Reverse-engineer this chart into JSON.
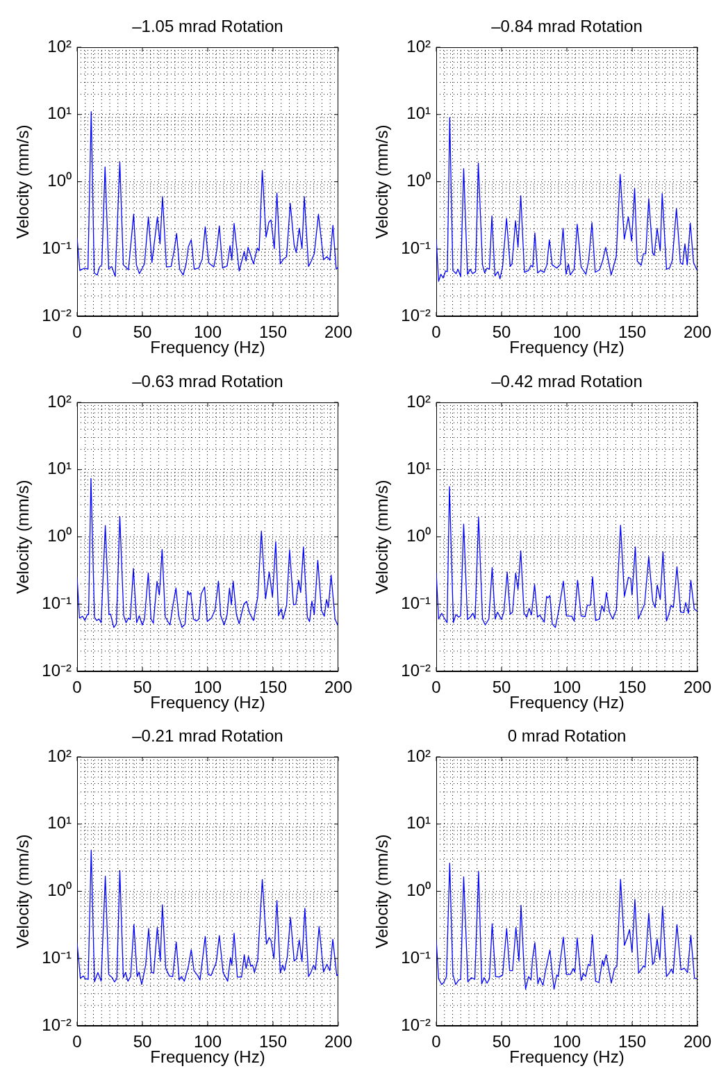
{
  "chart_data": [
    {
      "type": "line",
      "title": "–1.05 mrad Rotation",
      "xlabel": "Frequency (Hz)",
      "ylabel": "Velocity (mm/s)",
      "log": "y",
      "grid": true,
      "xlim": [
        0,
        200
      ],
      "xticks": [
        0,
        50,
        100,
        150,
        200
      ],
      "ylim": [
        0.01,
        100
      ],
      "yticks": [
        {
          "value": 0.01,
          "label": "10⁻²"
        },
        {
          "value": 0.1,
          "label": "10⁻¹"
        },
        {
          "value": 1,
          "label": "10⁰"
        },
        {
          "value": 10,
          "label": "10¹"
        },
        {
          "value": 100,
          "label": "10²"
        }
      ],
      "x": [
        0,
        2.1,
        5.7,
        8.3,
        10.8,
        13.1,
        15.4,
        17.2,
        18.9,
        21.4,
        24.2,
        26.5,
        29.2,
        32.7,
        35.4,
        39.3,
        43.3,
        45.4,
        47.7,
        51.6,
        54.6,
        57.3,
        61.5,
        63.5,
        65.4,
        68.4,
        72,
        74.3,
        76.2,
        78.5,
        81.2,
        83.5,
        85.2,
        87.4,
        89.7,
        93.2,
        95.8,
        98.1,
        100.8,
        104.7,
        106.8,
        108.9,
        111.4,
        114.9,
        117.1,
        118.5,
        120.2,
        124.1,
        128,
        129.4,
        130.9,
        135.1,
        137.9,
        139.4,
        141.8,
        144.7,
        146.8,
        148.5,
        151,
        153,
        155.6,
        158.1,
        160.4,
        163.2,
        166.2,
        167.8,
        170.1,
        172.2,
        174,
        177.2,
        179.3,
        181.6,
        184.8,
        188.7,
        191.3,
        193.5,
        195.9,
        198.4,
        200
      ],
      "series": [
        {
          "color": "#0000ff",
          "values": [
            0.145,
            0.048,
            0.052,
            0.05,
            11,
            0.044,
            0.041,
            0.054,
            0.058,
            1.66,
            0.05,
            0.055,
            0.039,
            1.96,
            0.058,
            0.049,
            0.33,
            0.058,
            0.043,
            0.06,
            0.3,
            0.063,
            0.3,
            0.119,
            0.6,
            0.054,
            0.055,
            0.095,
            0.17,
            0.05,
            0.041,
            0.06,
            0.108,
            0.137,
            0.05,
            0.052,
            0.071,
            0.213,
            0.062,
            0.054,
            0.092,
            0.22,
            0.052,
            0.056,
            0.112,
            0.068,
            0.24,
            0.047,
            0.092,
            0.066,
            0.106,
            0.06,
            0.103,
            0.094,
            1.48,
            0.15,
            0.25,
            0.27,
            0.101,
            0.68,
            0.06,
            0.071,
            0.077,
            0.48,
            0.114,
            0.088,
            0.204,
            0.101,
            0.6,
            0.055,
            0.066,
            0.085,
            0.33,
            0.069,
            0.077,
            0.068,
            0.225,
            0.05,
            0.054
          ]
        }
      ]
    },
    {
      "type": "line",
      "title": "–0.84 mrad Rotation",
      "xlabel": "Frequency (Hz)",
      "ylabel": "Velocity (mm/s)",
      "log": "y",
      "grid": true,
      "xlim": [
        0,
        200
      ],
      "xticks": [
        0,
        50,
        100,
        150,
        200
      ],
      "ylim": [
        0.01,
        100
      ],
      "yticks": [
        {
          "value": 0.01,
          "label": "10⁻²"
        },
        {
          "value": 0.1,
          "label": "10⁻¹"
        },
        {
          "value": 1,
          "label": "10⁰"
        },
        {
          "value": 10,
          "label": "10¹"
        },
        {
          "value": 100,
          "label": "10²"
        }
      ],
      "x": [
        0,
        1.8,
        3.5,
        5.3,
        7.1,
        8.5,
        10.3,
        12.7,
        15.2,
        16.6,
        18.7,
        21,
        23.9,
        26,
        27.8,
        30.1,
        32.2,
        35.4,
        37.1,
        38.9,
        40.7,
        42.6,
        44.9,
        47.2,
        48.8,
        50.8,
        53.8,
        56.6,
        58,
        60.7,
        62.6,
        64.7,
        67.5,
        70.7,
        72.5,
        73.9,
        75.5,
        77.6,
        79.9,
        82.6,
        84.7,
        86.6,
        88.8,
        92.3,
        95,
        97.1,
        99.4,
        101.2,
        102.6,
        105.6,
        107.9,
        110.9,
        114.6,
        116.7,
        119.2,
        121.7,
        125,
        127.3,
        129.8,
        133.9,
        137.8,
        140.8,
        144,
        147.1,
        149.6,
        151.9,
        153.9,
        156.9,
        158.6,
        160.4,
        162.7,
        165.7,
        166.9,
        169.1,
        171.5,
        173,
        176.3,
        178.6,
        180.7,
        183.9,
        186.9,
        188.7,
        190.4,
        192.2,
        194.5,
        197,
        199.5
      ],
      "series": [
        {
          "color": "#0000ff",
          "values": [
            0.14,
            0.033,
            0.042,
            0.037,
            0.047,
            0.046,
            9,
            0.048,
            0.043,
            0.05,
            0.039,
            1.57,
            0.042,
            0.05,
            0.043,
            0.046,
            1.89,
            0.058,
            0.044,
            0.052,
            0.05,
            0.31,
            0.04,
            0.046,
            0.036,
            0.055,
            0.285,
            0.055,
            0.06,
            0.263,
            0.106,
            0.62,
            0.045,
            0.048,
            0.057,
            0.054,
            0.173,
            0.044,
            0.048,
            0.045,
            0.058,
            0.137,
            0.058,
            0.052,
            0.059,
            0.204,
            0.042,
            0.06,
            0.041,
            0.05,
            0.234,
            0.054,
            0.042,
            0.068,
            0.247,
            0.045,
            0.049,
            0.066,
            0.106,
            0.041,
            0.077,
            1.29,
            0.14,
            0.3,
            0.131,
            0.8,
            0.066,
            0.057,
            0.085,
            0.085,
            0.56,
            0.087,
            0.08,
            0.204,
            0.094,
            0.67,
            0.05,
            0.052,
            0.067,
            0.4,
            0.063,
            0.059,
            0.119,
            0.058,
            0.243,
            0.063,
            0.049
          ]
        }
      ]
    },
    {
      "type": "line",
      "title": "–0.63 mrad Rotation",
      "xlabel": "Frequency (Hz)",
      "ylabel": "Velocity (mm/s)",
      "log": "y",
      "grid": true,
      "xlim": [
        0,
        200
      ],
      "xticks": [
        0,
        50,
        100,
        150,
        200
      ],
      "ylim": [
        0.01,
        100
      ],
      "yticks": [
        {
          "value": 0.01,
          "label": "10⁻²"
        },
        {
          "value": 0.1,
          "label": "10⁻¹"
        },
        {
          "value": 1,
          "label": "10⁰"
        },
        {
          "value": 10,
          "label": "10¹"
        },
        {
          "value": 100,
          "label": "10²"
        }
      ],
      "x": [
        0,
        1.8,
        4.2,
        6,
        7.8,
        8.8,
        10.6,
        13.3,
        15,
        16.8,
        18.4,
        21.6,
        24.4,
        25.6,
        28.1,
        30.1,
        32.7,
        35.7,
        37.5,
        39.3,
        40.7,
        43.1,
        45.6,
        47.6,
        49.9,
        51.6,
        54.5,
        56.6,
        58.4,
        61.2,
        63,
        65.1,
        67.5,
        71.1,
        73.7,
        75.7,
        77.8,
        80.3,
        82.6,
        84.7,
        85.8,
        87,
        89.1,
        91.4,
        93.2,
        95,
        97.6,
        99.7,
        102.9,
        105.6,
        108.2,
        110,
        112.6,
        114.9,
        116.7,
        118.1,
        119.5,
        122,
        124.1,
        127.7,
        129.8,
        132.1,
        135.1,
        138.3,
        141.1,
        144.3,
        147.1,
        149.6,
        152.1,
        154.2,
        156.3,
        157.7,
        160.4,
        162.7,
        165.7,
        167.5,
        169.6,
        171.2,
        173.3,
        176.3,
        178,
        179.8,
        181.6,
        184.3,
        187.1,
        189.3,
        191,
        192.4,
        194.5,
        197.5,
        199.5
      ],
      "series": [
        {
          "color": "#0000ff",
          "values": [
            0.25,
            0.062,
            0.066,
            0.057,
            0.07,
            0.07,
            7.4,
            0.064,
            0.057,
            0.06,
            0.053,
            1.48,
            0.07,
            0.071,
            0.045,
            0.051,
            2,
            0.067,
            0.053,
            0.062,
            0.059,
            0.34,
            0.053,
            0.067,
            0.049,
            0.06,
            0.29,
            0.06,
            0.052,
            0.218,
            0.137,
            0.65,
            0.064,
            0.049,
            0.104,
            0.173,
            0.067,
            0.045,
            0.05,
            0.157,
            0.137,
            0.149,
            0.06,
            0.056,
            0.06,
            0.141,
            0.18,
            0.055,
            0.062,
            0.082,
            0.22,
            0.067,
            0.049,
            0.07,
            0.173,
            0.098,
            0.22,
            0.07,
            0.051,
            0.1,
            0.11,
            0.073,
            0.057,
            0.127,
            1.22,
            0.12,
            0.3,
            0.127,
            0.85,
            0.067,
            0.085,
            0.06,
            0.096,
            0.64,
            0.098,
            0.1,
            0.227,
            0.149,
            0.71,
            0.064,
            0.055,
            0.111,
            0.07,
            0.45,
            0.081,
            0.066,
            0.117,
            0.089,
            0.27,
            0.06,
            0.049
          ]
        }
      ]
    },
    {
      "type": "line",
      "title": "–0.42 mrad Rotation",
      "xlabel": "Frequency (Hz)",
      "ylabel": "Velocity (mm/s)",
      "log": "y",
      "grid": true,
      "xlim": [
        0,
        200
      ],
      "xticks": [
        0,
        50,
        100,
        150,
        200
      ],
      "ylim": [
        0.01,
        100
      ],
      "yticks": [
        {
          "value": 0.01,
          "label": "10⁻²"
        },
        {
          "value": 0.1,
          "label": "10⁻¹"
        },
        {
          "value": 1,
          "label": "10⁰"
        },
        {
          "value": 10,
          "label": "10¹"
        },
        {
          "value": 100,
          "label": "10²"
        }
      ],
      "x": [
        0,
        1.8,
        4.2,
        6.5,
        8.3,
        10.1,
        13.1,
        15,
        17.2,
        18.7,
        21,
        23.9,
        26,
        28.1,
        29.7,
        32.4,
        35.4,
        37.5,
        40.3,
        42.8,
        45.1,
        46.9,
        49.9,
        51.8,
        54.3,
        56.6,
        58.4,
        60.8,
        62.6,
        64.7,
        67.2,
        69.3,
        71.1,
        72.9,
        75.3,
        77.5,
        79.2,
        82.7,
        84.5,
        85.6,
        87,
        88.8,
        91.2,
        94.1,
        97.3,
        99.7,
        103.8,
        105.6,
        108.2,
        110.9,
        113.9,
        115.7,
        118,
        119.7,
        122,
        125,
        126.8,
        128.6,
        130.3,
        132.6,
        135.1,
        137.9,
        141.1,
        144.1,
        147.1,
        148.9,
        149.9,
        152.4,
        154.7,
        157.3,
        159.5,
        162.7,
        165.7,
        167.6,
        169.2,
        171.5,
        173.6,
        176.3,
        178,
        179.8,
        181.6,
        184.3,
        187.1,
        189.6,
        191,
        193.1,
        194.9,
        197.5,
        199.5
      ],
      "series": [
        {
          "color": "#0000ff",
          "values": [
            0.29,
            0.06,
            0.073,
            0.06,
            0.053,
            5.6,
            0.053,
            0.07,
            0.064,
            0.067,
            1.55,
            0.059,
            0.064,
            0.073,
            0.06,
            1.96,
            0.06,
            0.049,
            0.06,
            0.35,
            0.06,
            0.076,
            0.059,
            0.077,
            0.3,
            0.071,
            0.076,
            0.29,
            0.165,
            0.62,
            0.073,
            0.064,
            0.087,
            0.069,
            0.196,
            0.064,
            0.069,
            0.054,
            0.13,
            0.124,
            0.134,
            0.051,
            0.045,
            0.087,
            0.22,
            0.067,
            0.066,
            0.056,
            0.227,
            0.067,
            0.065,
            0.096,
            0.096,
            0.255,
            0.057,
            0.06,
            0.095,
            0.077,
            0.149,
            0.076,
            0.06,
            0.082,
            1.49,
            0.13,
            0.25,
            0.24,
            0.137,
            0.71,
            0.06,
            0.079,
            0.1,
            0.51,
            0.111,
            0.089,
            0.193,
            0.117,
            0.6,
            0.056,
            0.07,
            0.096,
            0.09,
            0.36,
            0.076,
            0.075,
            0.105,
            0.073,
            0.227,
            0.085,
            0.079
          ]
        }
      ]
    },
    {
      "type": "line",
      "title": "–0.21 mrad Rotation",
      "xlabel": "Frequency (Hz)",
      "ylabel": "Velocity (mm/s)",
      "log": "y",
      "grid": true,
      "xlim": [
        0,
        200
      ],
      "xticks": [
        0,
        50,
        100,
        150,
        200
      ],
      "ylim": [
        0.01,
        100
      ],
      "yticks": [
        {
          "value": 0.01,
          "label": "10⁻²"
        },
        {
          "value": 0.1,
          "label": "10⁻¹"
        },
        {
          "value": 1,
          "label": "10⁰"
        },
        {
          "value": 10,
          "label": "10¹"
        },
        {
          "value": 100,
          "label": "10²"
        }
      ],
      "x": [
        0,
        2.5,
        4.8,
        6.5,
        8.5,
        10.8,
        13.3,
        15.9,
        18.4,
        21.6,
        24.2,
        26.9,
        28.6,
        30.4,
        32.7,
        35.4,
        37.1,
        38.9,
        41,
        43.5,
        46,
        47.4,
        49.5,
        52.5,
        54.8,
        56.9,
        58.7,
        61.4,
        63.7,
        65.3,
        67.9,
        70.7,
        73.2,
        75.9,
        78.2,
        79.9,
        82.1,
        85.2,
        87.4,
        89.5,
        92.3,
        94.1,
        95.8,
        98.1,
        100.3,
        102.6,
        106.5,
        108.9,
        111.8,
        115.3,
        117.4,
        118.5,
        120.2,
        122.7,
        125.9,
        128,
        129.4,
        131.2,
        133,
        134.4,
        135.8,
        138.3,
        141.8,
        145,
        147.1,
        148.5,
        150.7,
        153,
        155.6,
        157.4,
        158.8,
        160.9,
        163.4,
        166.2,
        168,
        170.1,
        172.2,
        174.4,
        177.2,
        179,
        181.1,
        182.5,
        185.3,
        188.7,
        191.3,
        193.5,
        195.8,
        198.8,
        200
      ],
      "series": [
        {
          "color": "#0000ff",
          "values": [
            0.17,
            0.051,
            0.055,
            0.05,
            0.049,
            4.1,
            0.045,
            0.062,
            0.046,
            1.68,
            0.058,
            0.052,
            0.045,
            0.05,
            2.03,
            0.052,
            0.062,
            0.046,
            0.054,
            0.32,
            0.054,
            0.063,
            0.041,
            0.08,
            0.28,
            0.062,
            0.061,
            0.29,
            0.092,
            0.63,
            0.071,
            0.055,
            0.054,
            0.176,
            0.048,
            0.054,
            0.046,
            0.076,
            0.136,
            0.066,
            0.056,
            0.048,
            0.09,
            0.213,
            0.058,
            0.056,
            0.087,
            0.22,
            0.062,
            0.046,
            0.103,
            0.08,
            0.238,
            0.053,
            0.053,
            0.114,
            0.071,
            0.108,
            0.077,
            0.08,
            0.062,
            0.096,
            1.5,
            0.164,
            0.205,
            0.185,
            0.099,
            0.73,
            0.061,
            0.08,
            0.066,
            0.104,
            0.41,
            0.092,
            0.099,
            0.189,
            0.09,
            0.56,
            0.054,
            0.062,
            0.08,
            0.068,
            0.3,
            0.063,
            0.082,
            0.066,
            0.193,
            0.056,
            0.058
          ]
        }
      ]
    },
    {
      "type": "line",
      "title": "0 mrad Rotation",
      "xlabel": "Frequency (Hz)",
      "ylabel": "Velocity (mm/s)",
      "log": "y",
      "grid": true,
      "xlim": [
        0,
        200
      ],
      "xticks": [
        0,
        50,
        100,
        150,
        200
      ],
      "ylim": [
        0.01,
        100
      ],
      "yticks": [
        {
          "value": 0.01,
          "label": "10⁻²"
        },
        {
          "value": 0.1,
          "label": "10⁻¹"
        },
        {
          "value": 1,
          "label": "10⁰"
        },
        {
          "value": 10,
          "label": "10¹"
        },
        {
          "value": 100,
          "label": "10²"
        }
      ],
      "x": [
        0,
        1.8,
        4.2,
        6,
        7.8,
        10.3,
        12.7,
        14.9,
        17.2,
        18.7,
        21,
        24.2,
        26.9,
        29.5,
        32.4,
        34.8,
        36.6,
        38.9,
        40.7,
        42.8,
        45.4,
        48.1,
        50.8,
        53.9,
        56.2,
        58.4,
        61,
        63.3,
        64.9,
        67.2,
        68.4,
        70.7,
        72.5,
        73.7,
        75.5,
        77.8,
        79.2,
        81.7,
        83.8,
        87,
        88.8,
        90.2,
        92.3,
        93.4,
        95.1,
        97.3,
        99.7,
        102.6,
        105,
        106.1,
        107.9,
        110.9,
        112.6,
        114.4,
        116.4,
        117.8,
        119.5,
        122,
        124.5,
        127.3,
        128.2,
        130.1,
        132.6,
        134,
        136.5,
        138.3,
        141.1,
        144.1,
        146.3,
        148,
        149.9,
        152.1,
        154.9,
        156.9,
        158.7,
        159.9,
        162.7,
        165.7,
        166.9,
        169.1,
        171.2,
        173.3,
        176.3,
        178.6,
        180,
        181.4,
        184.3,
        187.4,
        189.9,
        192.4,
        194.9,
        197.7,
        199.5
      ],
      "series": [
        {
          "color": "#0000ff",
          "values": [
            0.187,
            0.05,
            0.041,
            0.045,
            0.054,
            2.63,
            0.058,
            0.041,
            0.048,
            0.049,
            1.64,
            0.045,
            0.052,
            0.049,
            1.96,
            0.042,
            0.052,
            0.043,
            0.05,
            0.33,
            0.054,
            0.053,
            0.057,
            0.28,
            0.066,
            0.066,
            0.29,
            0.092,
            0.62,
            0.071,
            0.035,
            0.054,
            0.048,
            0.098,
            0.173,
            0.042,
            0.052,
            0.04,
            0.068,
            0.134,
            0.061,
            0.035,
            0.057,
            0.054,
            0.096,
            0.208,
            0.058,
            0.058,
            0.071,
            0.063,
            0.203,
            0.047,
            0.06,
            0.054,
            0.082,
            0.078,
            0.225,
            0.046,
            0.044,
            0.094,
            0.077,
            0.114,
            0.061,
            0.043,
            0.071,
            0.077,
            1.51,
            0.157,
            0.208,
            0.27,
            0.124,
            0.76,
            0.061,
            0.068,
            0.078,
            0.074,
            0.47,
            0.082,
            0.089,
            0.196,
            0.096,
            0.6,
            0.054,
            0.062,
            0.07,
            0.06,
            0.32,
            0.068,
            0.072,
            0.062,
            0.223,
            0.051,
            0.05
          ]
        }
      ]
    }
  ]
}
